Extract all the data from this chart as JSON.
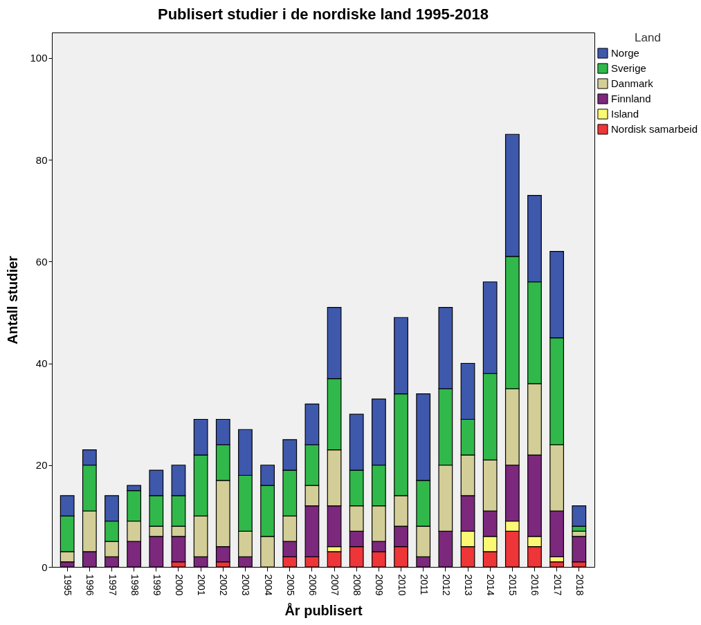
{
  "chart_data": {
    "type": "bar",
    "stacked": true,
    "title": "Publisert studier i de nordiske land 1995-2018",
    "xlabel": "År publisert",
    "ylabel": "Antall studier",
    "legend_title": "Land",
    "legend": "right",
    "categories": [
      "1995",
      "1996",
      "1997",
      "1998",
      "1999",
      "2000",
      "2001",
      "2002",
      "2003",
      "2004",
      "2005",
      "2006",
      "2007",
      "2008",
      "2009",
      "2010",
      "2011",
      "2012",
      "2013",
      "2014",
      "2015",
      "2016",
      "2017",
      "2018"
    ],
    "series": [
      {
        "name": "Nordisk samarbeid",
        "color": "#ee3537",
        "values": [
          0,
          0,
          0,
          0,
          0,
          1,
          0,
          1,
          0,
          0,
          2,
          2,
          3,
          4,
          3,
          4,
          0,
          0,
          4,
          3,
          7,
          4,
          1,
          1
        ]
      },
      {
        "name": "Island",
        "color": "#fbf873",
        "values": [
          0,
          0,
          0,
          0,
          0,
          0,
          0,
          0,
          0,
          0,
          0,
          0,
          1,
          0,
          0,
          0,
          0,
          0,
          3,
          3,
          2,
          2,
          1,
          0
        ]
      },
      {
        "name": "Finnland",
        "color": "#7b287d",
        "values": [
          1,
          3,
          2,
          5,
          6,
          5,
          2,
          3,
          2,
          0,
          3,
          10,
          8,
          3,
          2,
          4,
          2,
          7,
          7,
          5,
          11,
          16,
          9,
          5
        ]
      },
      {
        "name": "Danmark",
        "color": "#d3ce97",
        "values": [
          2,
          8,
          3,
          4,
          2,
          2,
          8,
          13,
          5,
          6,
          5,
          4,
          11,
          5,
          7,
          6,
          6,
          13,
          8,
          10,
          15,
          14,
          13,
          1
        ]
      },
      {
        "name": "Sverige",
        "color": "#31b84a",
        "values": [
          7,
          9,
          4,
          6,
          6,
          6,
          12,
          7,
          11,
          10,
          9,
          8,
          14,
          7,
          8,
          20,
          9,
          15,
          7,
          17,
          26,
          20,
          21,
          1
        ]
      },
      {
        "name": "Norge",
        "color": "#3e58ac",
        "values": [
          4,
          3,
          5,
          1,
          5,
          6,
          7,
          5,
          9,
          4,
          6,
          8,
          14,
          11,
          13,
          15,
          17,
          16,
          11,
          18,
          24,
          17,
          17,
          4
        ]
      }
    ],
    "ylim": [
      0,
      105
    ],
    "yticks": [
      0,
      20,
      40,
      60,
      80,
      100
    ],
    "grid": false
  }
}
